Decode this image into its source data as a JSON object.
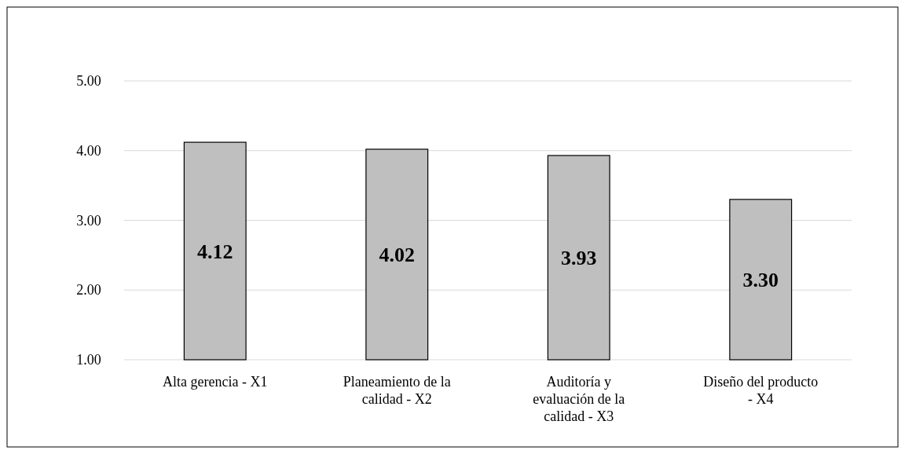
{
  "chart_data": {
    "type": "bar",
    "categories": [
      "Alta gerencia - X1",
      "Planeamiento de la calidad - X2",
      "Auditoría y evaluación de la calidad - X3",
      "Diseño del producto - X4"
    ],
    "values": [
      4.12,
      4.02,
      3.93,
      3.3
    ],
    "color": "#bfbfbf",
    "ylim": [
      1,
      5
    ],
    "yticks": [
      {
        "value": 1,
        "label": "1.00"
      },
      {
        "value": 2,
        "label": "2.00"
      },
      {
        "value": 3,
        "label": "3.00"
      },
      {
        "value": 4,
        "label": "4.00"
      },
      {
        "value": 5,
        "label": "5.00"
      }
    ],
    "grid": "y",
    "value_labels": [
      "4.12",
      "4.02",
      "3.93",
      "3.30"
    ]
  }
}
